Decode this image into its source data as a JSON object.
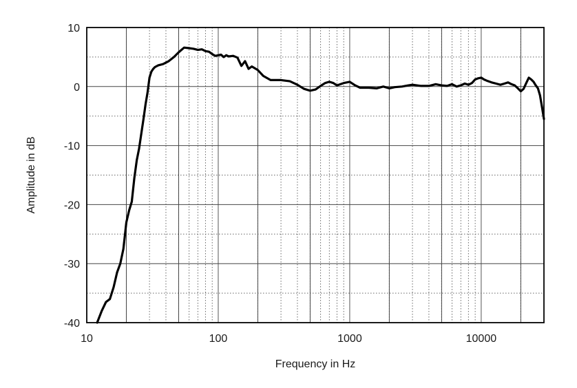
{
  "chart_data": {
    "type": "line",
    "title": "",
    "xlabel": "Frequency in Hz",
    "ylabel": "Amplitude in dB",
    "x_scale": "log",
    "xlim": [
      10,
      30000
    ],
    "ylim": [
      -40,
      10
    ],
    "x_ticks": [
      10,
      100,
      1000,
      10000
    ],
    "x_tick_labels": [
      "10",
      "100",
      "1000",
      "10000"
    ],
    "y_ticks": [
      10,
      0,
      -10,
      -20,
      -30,
      -40
    ],
    "y_tick_labels": [
      "10",
      "0",
      "-10",
      "-20",
      "-30",
      "-40"
    ],
    "grid": "on (major solid, minor dotted)",
    "legend": "none",
    "line_color": "#000000",
    "series": [
      {
        "x": [
          12,
          13,
          14,
          15,
          16,
          17,
          18,
          19,
          20,
          21,
          22,
          23,
          24,
          25,
          26,
          27,
          28,
          29,
          30,
          31,
          32,
          33,
          35,
          38,
          42,
          46,
          50,
          55,
          60,
          65,
          70,
          75,
          80,
          85,
          90,
          95,
          100,
          105,
          110,
          115,
          120,
          130,
          140,
          150,
          160,
          170,
          180,
          200,
          220,
          250,
          280,
          300,
          350,
          400,
          450,
          500,
          550,
          600,
          650,
          700,
          750,
          800,
          850,
          900,
          1000,
          1100,
          1200,
          1400,
          1600,
          1800,
          2000,
          2200,
          2500,
          2800,
          3000,
          3500,
          4000,
          4500,
          5000,
          5500,
          6000,
          6500,
          7000,
          7500,
          8000,
          8500,
          9000,
          9500,
          10000,
          10500,
          11000,
          12000,
          13000,
          14000,
          15000,
          16000,
          17000,
          18000,
          19000,
          20000,
          21000,
          22000,
          23000,
          24000,
          25000,
          26000,
          27000,
          28000,
          29000,
          30000
        ],
        "y": [
          -40,
          -38,
          -36.5,
          -36,
          -34,
          -31.5,
          -30,
          -27.5,
          -23,
          -21,
          -19.5,
          -15.5,
          -12.5,
          -10.5,
          -8,
          -5.5,
          -3,
          -1,
          1.5,
          2.5,
          3,
          3.3,
          3.6,
          3.8,
          4.3,
          5,
          5.8,
          6.6,
          6.5,
          6.4,
          6.2,
          6.3,
          6,
          5.9,
          5.5,
          5.2,
          5.3,
          5.4,
          5,
          5.3,
          5.1,
          5.2,
          4.9,
          3.5,
          4.3,
          3,
          3.4,
          2.8,
          1.8,
          1.1,
          1.1,
          1.1,
          0.9,
          0.3,
          -0.4,
          -0.7,
          -0.5,
          0.1,
          0.6,
          0.8,
          0.6,
          0.2,
          0.4,
          0.6,
          0.8,
          0.2,
          -0.2,
          -0.2,
          -0.3,
          0,
          -0.3,
          -0.1,
          0,
          0.2,
          0.3,
          0.1,
          0.1,
          0.4,
          0.2,
          0.1,
          0.4,
          0,
          0.2,
          0.5,
          0.3,
          0.6,
          1.2,
          1.4,
          1.5,
          1.2,
          1,
          0.7,
          0.5,
          0.3,
          0.5,
          0.7,
          0.4,
          0.2,
          -0.3,
          -0.8,
          -0.4,
          0.6,
          1.5,
          1.2,
          0.8,
          0.2,
          -0.3,
          -1.5,
          -3.5,
          -5.5
        ]
      }
    ]
  }
}
